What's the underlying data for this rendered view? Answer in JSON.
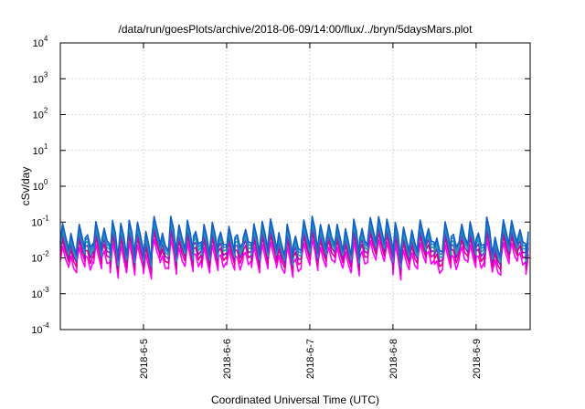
{
  "chart_data": {
    "type": "line",
    "title": "/data/run/goesPlots/archive/2018-06-09/14:00/flux/../bryn/5daysMars.plot",
    "xlabel": "Coordinated Universal Time (UTC)",
    "ylabel": "cSv/day",
    "yscale": "log",
    "ylim": [
      0.0001,
      10000
    ],
    "xlim": [
      0,
      5.65
    ],
    "grid": true,
    "y_ticks": [
      {
        "base": "10",
        "exp": "-4",
        "value": 0.0001
      },
      {
        "base": "10",
        "exp": "-3",
        "value": 0.001
      },
      {
        "base": "10",
        "exp": "-2",
        "value": 0.01
      },
      {
        "base": "10",
        "exp": "-1",
        "value": 0.1
      },
      {
        "base": "10",
        "exp": "0",
        "value": 1
      },
      {
        "base": "10",
        "exp": "1",
        "value": 10
      },
      {
        "base": "10",
        "exp": "2",
        "value": 100
      },
      {
        "base": "10",
        "exp": "3",
        "value": 1000
      },
      {
        "base": "10",
        "exp": "4",
        "value": 10000
      }
    ],
    "x_ticks": [
      {
        "label": "2018-6-5",
        "value": 1
      },
      {
        "label": "2018-6-6",
        "value": 2
      },
      {
        "label": "2018-6-7",
        "value": 3
      },
      {
        "label": "2018-6-8",
        "value": 4
      },
      {
        "label": "2018-6-9",
        "value": 5
      }
    ],
    "series_colors": [
      "#ff00ff",
      "#e0008c",
      "#8a1ac8",
      "#17a3a3",
      "#2080d0",
      "#1060c8"
    ],
    "pattern": {
      "period_days": 0.1,
      "upper_range": [
        0.035,
        0.15
      ],
      "lower_range": [
        0.003,
        0.012
      ]
    }
  }
}
